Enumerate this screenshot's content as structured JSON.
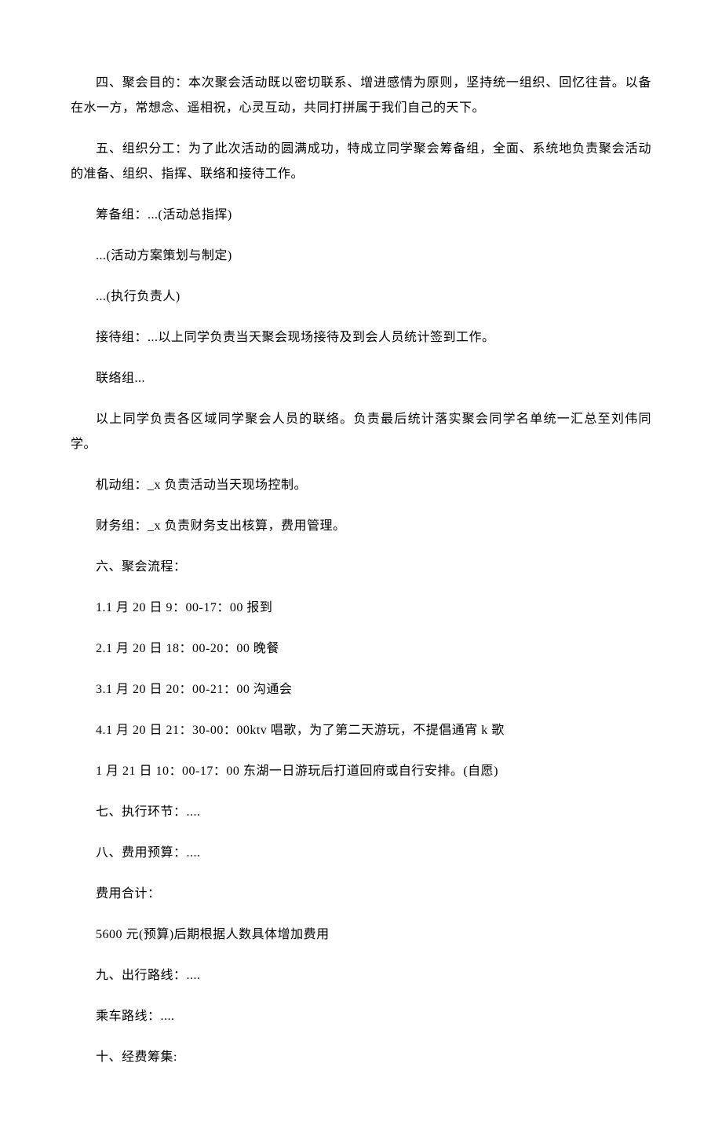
{
  "doc": {
    "font_family": "SimSun",
    "font_size_pt": 12,
    "line_height": 2.0,
    "text_color": "#000000",
    "background_color": "#ffffff",
    "text_indent_em": 2
  },
  "paragraphs": {
    "p1": "四、聚会目的：本次聚会活动既以密切联系、增进感情为原则，坚持统一组织、回忆往昔。以备在水一方，常想念、遥相祝，心灵互动，共同打拼属于我们自己的天下。",
    "p2": "五、组织分工：为了此次活动的圆满成功，特成立同学聚会筹备组，全面、系统地负责聚会活动的准备、组织、指挥、联络和接待工作。",
    "p3": "筹备组：...(活动总指挥)",
    "p4": "...(活动方案策划与制定)",
    "p5": "...(执行负责人)",
    "p6": "接待组：...以上同学负责当天聚会现场接待及到会人员统计签到工作。",
    "p7": "联络组...",
    "p8": "以上同学负责各区域同学聚会人员的联络。负责最后统计落实聚会同学名单统一汇总至刘伟同学。",
    "p9": "机动组：_x 负责活动当天现场控制。",
    "p10": "财务组：_x 负责财务支出核算，费用管理。",
    "p11": "六、聚会流程：",
    "p12": "1.1 月 20 日 9：00-17：00 报到",
    "p13": "2.1 月 20 日 18：00-20：00 晚餐",
    "p14": "3.1 月 20 日 20：00-21：00 沟通会",
    "p15": "4.1 月 20 日 21：30-00：00ktv 唱歌，为了第二天游玩，不提倡通宵 k 歌",
    "p16": "1 月 21 日 10：00-17：00 东湖一日游玩后打道回府或自行安排。(自愿)",
    "p17": "七、执行环节：....",
    "p18": "八、费用预算：....",
    "p19": "费用合计：",
    "p20": "5600 元(预算)后期根据人数具体增加费用",
    "p21": "九、出行路线：....",
    "p22": "乘车路线：....",
    "p23": "十、经费筹集:"
  }
}
